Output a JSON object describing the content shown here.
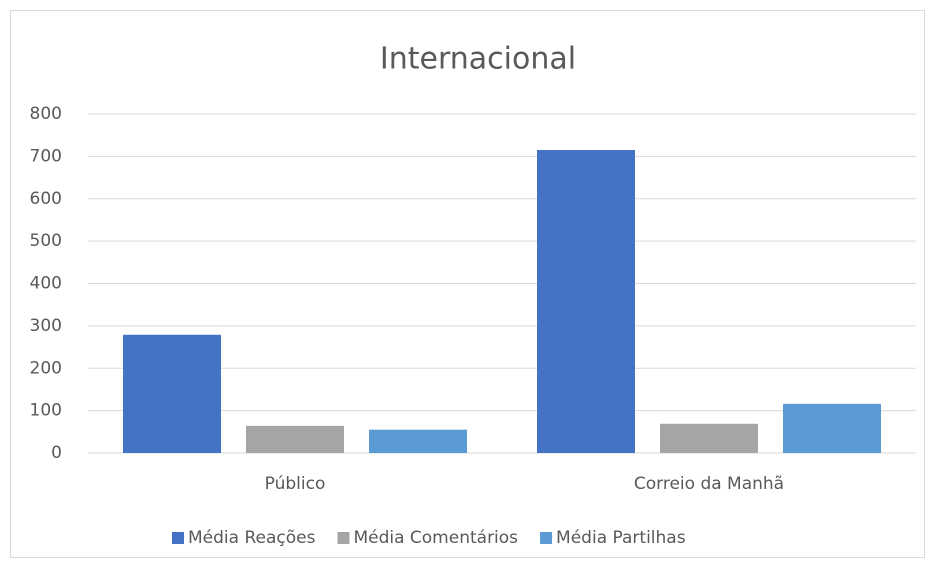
{
  "chart_data": {
    "type": "bar",
    "title": "Internacional",
    "categories": [
      "Público",
      "Correio da Manhã"
    ],
    "series": [
      {
        "name": "Média Reações",
        "color": "#4472c4",
        "values": [
          279,
          715
        ]
      },
      {
        "name": "Média Comentários",
        "color": "#a5a5a5",
        "values": [
          64,
          69
        ]
      },
      {
        "name": "Média Partilhas",
        "color": "#5b9bd5",
        "values": [
          55,
          116
        ]
      }
    ],
    "ylim": [
      0,
      800
    ],
    "yticks": [
      0,
      100,
      200,
      300,
      400,
      500,
      600,
      700,
      800
    ],
    "grid": true,
    "legend": "bottom"
  }
}
